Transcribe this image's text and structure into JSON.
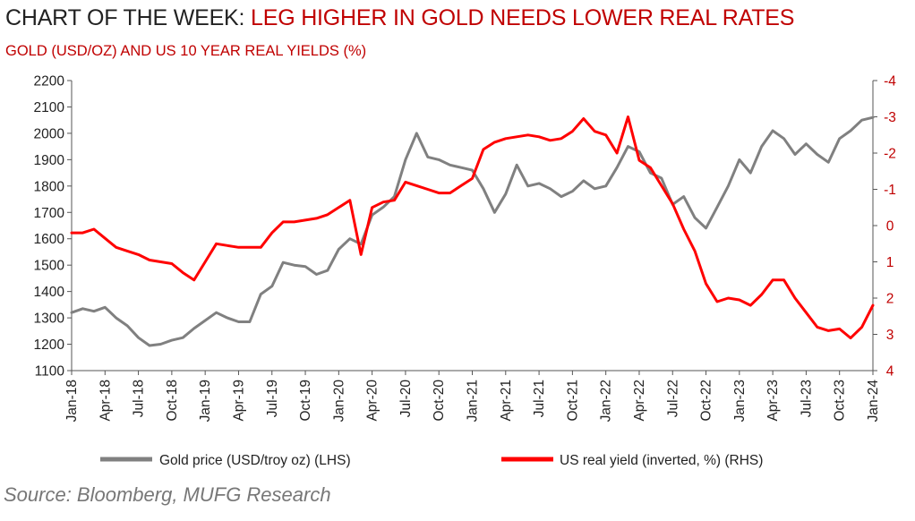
{
  "title": {
    "prefix": "CHART OF THE WEEK: ",
    "highlight": "LEG HIGHER IN GOLD NEEDS LOWER REAL RATES"
  },
  "subtitle": "GOLD (USD/OZ) AND US 10 YEAR REAL YIELDS (%)",
  "source": "Source: Bloomberg, MUFG Research",
  "colors": {
    "gold": "#808080",
    "yield": "#ff0000",
    "right_axis": "#c00000",
    "title_accent": "#c00000"
  },
  "chart_data": {
    "type": "line",
    "x_range": [
      "2018-01",
      "2024-01"
    ],
    "x_ticks": [
      "Jan-18",
      "Apr-18",
      "Jul-18",
      "Oct-18",
      "Jan-19",
      "Apr-19",
      "Jul-19",
      "Oct-19",
      "Jan-20",
      "Apr-20",
      "Jul-20",
      "Oct-20",
      "Jan-21",
      "Apr-21",
      "Jul-21",
      "Oct-21",
      "Jan-22",
      "Apr-22",
      "Jul-22",
      "Oct-22",
      "Jan-23",
      "Apr-23",
      "Jul-23",
      "Oct-23",
      "Jan-24"
    ],
    "left_axis": {
      "min": 1100,
      "max": 2200,
      "ticks": [
        "1100",
        "1200",
        "1300",
        "1400",
        "1500",
        "1600",
        "1700",
        "1800",
        "1900",
        "2000",
        "2100",
        "2200"
      ]
    },
    "right_axis": {
      "min": -4,
      "max": 4,
      "inverted": true,
      "ticks": [
        "-4",
        "-3",
        "-2",
        "-1",
        "0",
        "1",
        "2",
        "3",
        "4"
      ]
    },
    "legend_position": "bottom",
    "grid": false,
    "series": [
      {
        "name": "Gold price (USD/troy oz) (LHS)",
        "axis": "left",
        "x": [
          "2018-01",
          "2018-02",
          "2018-03",
          "2018-04",
          "2018-05",
          "2018-06",
          "2018-07",
          "2018-08",
          "2018-09",
          "2018-10",
          "2018-11",
          "2018-12",
          "2019-01",
          "2019-02",
          "2019-03",
          "2019-04",
          "2019-05",
          "2019-06",
          "2019-07",
          "2019-08",
          "2019-09",
          "2019-10",
          "2019-11",
          "2019-12",
          "2020-01",
          "2020-02",
          "2020-03",
          "2020-04",
          "2020-05",
          "2020-06",
          "2020-07",
          "2020-08",
          "2020-09",
          "2020-10",
          "2020-11",
          "2020-12",
          "2021-01",
          "2021-02",
          "2021-03",
          "2021-04",
          "2021-05",
          "2021-06",
          "2021-07",
          "2021-08",
          "2021-09",
          "2021-10",
          "2021-11",
          "2021-12",
          "2022-01",
          "2022-02",
          "2022-03",
          "2022-04",
          "2022-05",
          "2022-06",
          "2022-07",
          "2022-08",
          "2022-09",
          "2022-10",
          "2022-11",
          "2022-12",
          "2023-01",
          "2023-02",
          "2023-03",
          "2023-04",
          "2023-05",
          "2023-06",
          "2023-07",
          "2023-08",
          "2023-09",
          "2023-10",
          "2023-11",
          "2023-12",
          "2024-01"
        ],
        "values": [
          1320,
          1335,
          1325,
          1340,
          1300,
          1270,
          1225,
          1195,
          1200,
          1215,
          1225,
          1260,
          1290,
          1320,
          1300,
          1285,
          1285,
          1390,
          1420,
          1510,
          1500,
          1495,
          1465,
          1480,
          1560,
          1600,
          1580,
          1690,
          1720,
          1760,
          1900,
          2000,
          1910,
          1900,
          1880,
          1870,
          1860,
          1790,
          1700,
          1770,
          1880,
          1800,
          1810,
          1790,
          1760,
          1780,
          1820,
          1790,
          1800,
          1870,
          1950,
          1930,
          1850,
          1830,
          1730,
          1760,
          1680,
          1640,
          1720,
          1800,
          1900,
          1850,
          1950,
          2010,
          1980,
          1920,
          1960,
          1920,
          1890,
          1980,
          2010,
          2050,
          2060
        ]
      },
      {
        "name": "US real yield (inverted, %) (RHS)",
        "axis": "right",
        "x": [
          "2018-01",
          "2018-02",
          "2018-03",
          "2018-04",
          "2018-05",
          "2018-06",
          "2018-07",
          "2018-08",
          "2018-09",
          "2018-10",
          "2018-11",
          "2018-12",
          "2019-01",
          "2019-02",
          "2019-03",
          "2019-04",
          "2019-05",
          "2019-06",
          "2019-07",
          "2019-08",
          "2019-09",
          "2019-10",
          "2019-11",
          "2019-12",
          "2020-01",
          "2020-02",
          "2020-03",
          "2020-04",
          "2020-05",
          "2020-06",
          "2020-07",
          "2020-08",
          "2020-09",
          "2020-10",
          "2020-11",
          "2020-12",
          "2021-01",
          "2021-02",
          "2021-03",
          "2021-04",
          "2021-05",
          "2021-06",
          "2021-07",
          "2021-08",
          "2021-09",
          "2021-10",
          "2021-11",
          "2021-12",
          "2022-01",
          "2022-02",
          "2022-03",
          "2022-04",
          "2022-05",
          "2022-06",
          "2022-07",
          "2022-08",
          "2022-09",
          "2022-10",
          "2022-11",
          "2022-12",
          "2023-01",
          "2023-02",
          "2023-03",
          "2023-04",
          "2023-05",
          "2023-06",
          "2023-07",
          "2023-08",
          "2023-09",
          "2023-10",
          "2023-11",
          "2023-12",
          "2024-01"
        ],
        "values": [
          0.2,
          0.2,
          0.1,
          0.35,
          0.6,
          0.7,
          0.8,
          0.95,
          1.0,
          1.05,
          1.3,
          1.5,
          1.0,
          0.5,
          0.55,
          0.6,
          0.6,
          0.6,
          0.2,
          -0.1,
          -0.1,
          -0.15,
          -0.2,
          -0.3,
          -0.5,
          -0.7,
          0.8,
          -0.5,
          -0.65,
          -0.7,
          -1.2,
          -1.1,
          -1.0,
          -0.9,
          -0.9,
          -1.1,
          -1.3,
          -2.1,
          -2.3,
          -2.4,
          -2.45,
          -2.5,
          -2.45,
          -2.35,
          -2.4,
          -2.6,
          -2.95,
          -2.6,
          -2.5,
          -2.0,
          -3.0,
          -1.8,
          -1.6,
          -1.1,
          -0.6,
          0.1,
          0.7,
          1.6,
          2.1,
          2.0,
          2.05,
          2.2,
          1.9,
          1.5,
          1.5,
          2.0,
          2.4,
          2.8,
          2.9,
          2.85,
          3.1,
          2.8,
          2.2
        ]
      }
    ]
  }
}
